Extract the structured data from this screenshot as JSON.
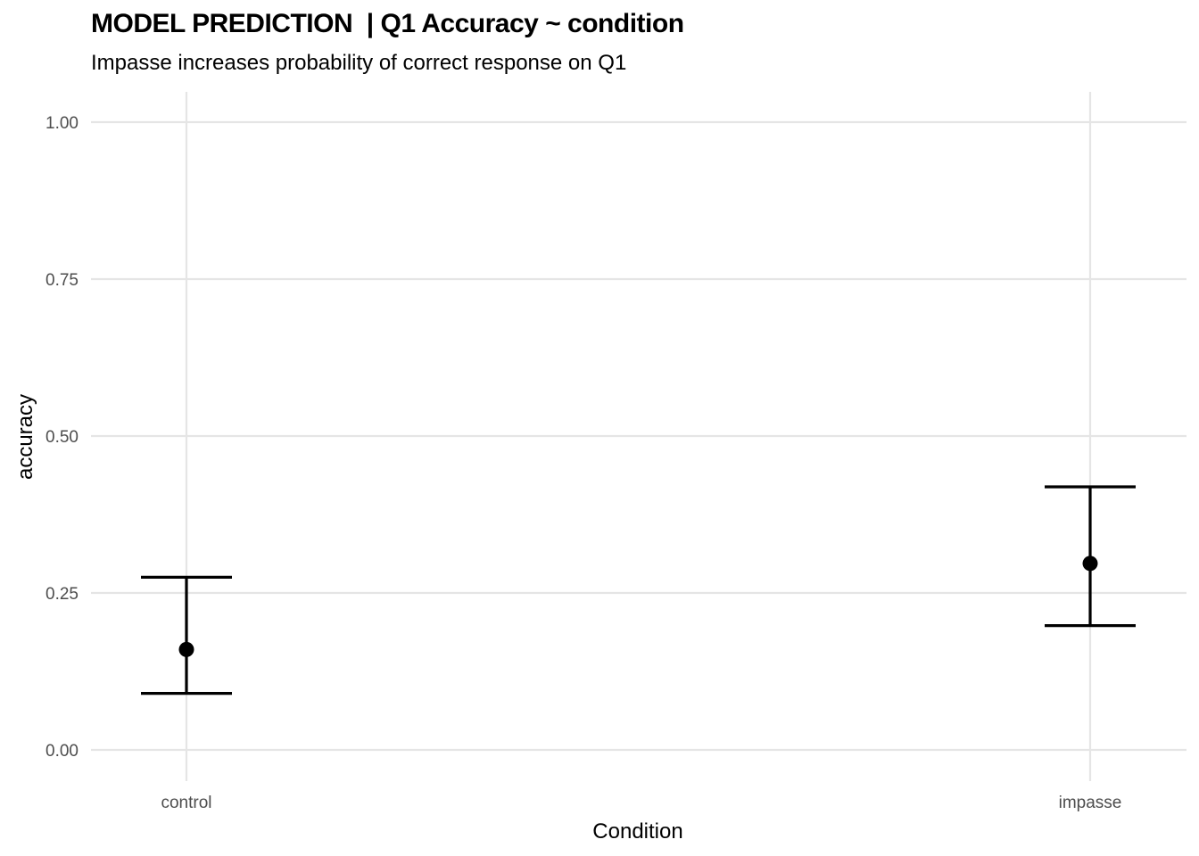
{
  "chart_data": {
    "type": "scatter",
    "title": "MODEL PREDICTION  | Q1 Accuracy ~ condition",
    "subtitle": "Impasse increases probability of correct response on Q1",
    "xlabel": "Condition",
    "ylabel": "accuracy",
    "categories": [
      "control",
      "impasse"
    ],
    "ylim": [
      -0.05,
      1.05
    ],
    "yticks": [
      0,
      0.25,
      0.5,
      0.75,
      1
    ],
    "ytick_labels": [
      "0.00",
      "0.25",
      "0.50",
      "0.75",
      "1.00"
    ],
    "grid": true,
    "points": [
      {
        "category": "control",
        "estimate": 0.16,
        "lower": 0.09,
        "upper": 0.275
      },
      {
        "category": "impasse",
        "estimate": 0.297,
        "lower": 0.198,
        "upper": 0.419
      }
    ],
    "colors": {
      "points": "#000000",
      "grid": "#e5e5e5",
      "tick_text": "#4d4d4d"
    }
  }
}
